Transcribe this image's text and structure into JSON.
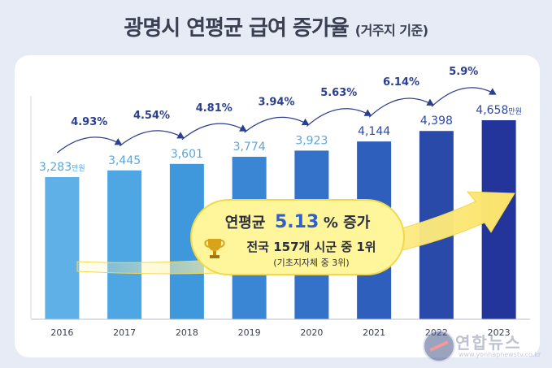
{
  "title": {
    "main": "광명시 연평균 급여 증가율",
    "sub": "(거주지 기준)"
  },
  "chart_data": {
    "type": "bar",
    "categories": [
      "2016",
      "2017",
      "2018",
      "2019",
      "2020",
      "2021",
      "2022",
      "2023"
    ],
    "values": [
      3283,
      3445,
      3601,
      3774,
      3923,
      4144,
      4398,
      4658
    ],
    "value_labels": [
      "3,283",
      "3,445",
      "3,601",
      "3,774",
      "3,923",
      "4,144",
      "4,398",
      "4,658"
    ],
    "unit": "만원",
    "growth_rates": [
      "4.93%",
      "4.54%",
      "4.81%",
      "3.94%",
      "5.63%",
      "6.14%",
      "5.9%"
    ],
    "ylim": [
      0,
      5000
    ],
    "bar_colors": [
      "#5fb0e6",
      "#4ea6e2",
      "#3f97dc",
      "#3a85d4",
      "#3471c8",
      "#2e5fbc",
      "#2a4aaa",
      "#23349a"
    ],
    "rate_color": "#2b3f8f",
    "grid": false
  },
  "callout": {
    "headline_prefix": "연평균",
    "headline_value": "5.13",
    "headline_suffix": "% 증가",
    "rank": "전국 157개 시군 중 1위",
    "rank_note": "(기초지자체 중 3위)",
    "trophy_icon": "trophy-icon"
  },
  "watermark": {
    "name": "연합뉴스",
    "sub": "www.yonhapnewstv.co.kr"
  }
}
